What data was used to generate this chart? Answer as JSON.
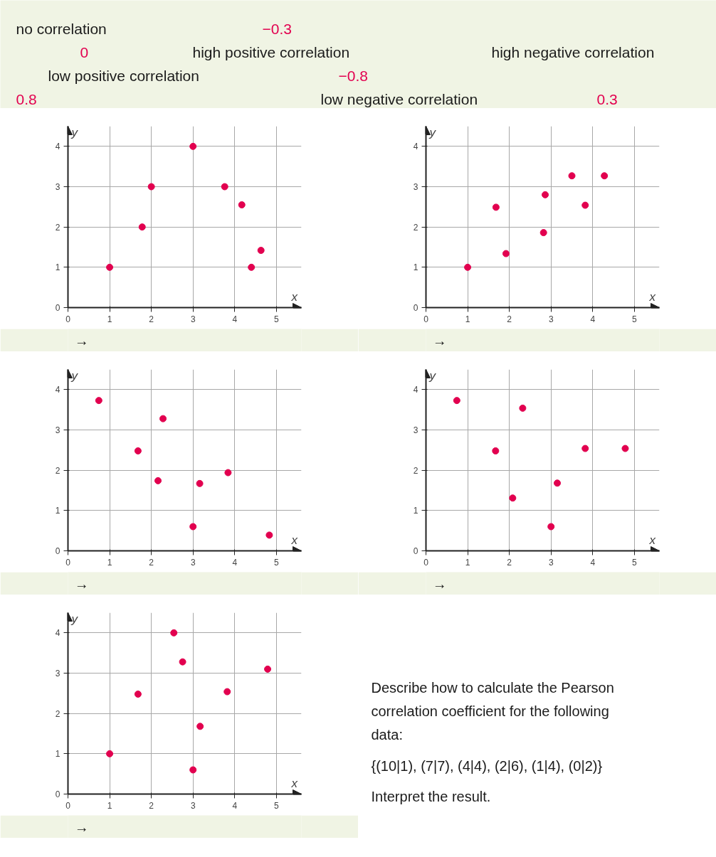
{
  "chart_data": [
    {
      "type": "other",
      "annotations": [
        "no correlation",
        "−0.3",
        "0",
        "high positive correlation",
        "high negative correlation",
        "low positive correlation",
        "−0.8",
        "0.8",
        "low negative correlation",
        "0.3"
      ],
      "colors": [
        "#1a1a1a",
        "#e2004f",
        "#e2004f",
        "#1a1a1a",
        "#1a1a1a",
        "#1a1a1a",
        "#e2004f",
        "#e2004f",
        "#1a1a1a",
        "#e2004f"
      ]
    },
    {
      "type": "scatter",
      "xlabel": "x",
      "ylabel": "y",
      "xlim": [
        0,
        5.6
      ],
      "ylim": [
        0,
        4.5
      ],
      "xticks": [
        0,
        1,
        2,
        3,
        4,
        5
      ],
      "yticks": [
        0,
        1,
        2,
        3,
        4
      ],
      "grid": true,
      "marker": "circle",
      "annotations": [
        "→"
      ],
      "series": [
        {
          "color": "#e2004f",
          "x": [
            1,
            1.78,
            2,
            3,
            3.76,
            4.17,
            4.4,
            4.63
          ],
          "values": [
            1,
            2,
            3,
            4,
            3,
            2.55,
            1,
            1.42
          ]
        }
      ]
    },
    {
      "type": "scatter",
      "xlabel": "x",
      "ylabel": "y",
      "xlim": [
        0,
        5.6
      ],
      "ylim": [
        0,
        4.5
      ],
      "xticks": [
        0,
        1,
        2,
        3,
        4,
        5
      ],
      "yticks": [
        0,
        1,
        2,
        3,
        4
      ],
      "grid": true,
      "marker": "circle",
      "annotations": [
        "→"
      ],
      "series": [
        {
          "color": "#e2004f",
          "x": [
            1,
            1.68,
            1.92,
            2.82,
            2.86,
            3.5,
            3.82,
            4.28
          ],
          "values": [
            1,
            2.49,
            1.34,
            1.86,
            2.8,
            3.27,
            2.54,
            3.27
          ]
        }
      ]
    },
    {
      "type": "scatter",
      "xlabel": "x",
      "ylabel": "y",
      "xlim": [
        0,
        5.6
      ],
      "ylim": [
        0,
        4.5
      ],
      "xticks": [
        0,
        1,
        2,
        3,
        4,
        5
      ],
      "yticks": [
        0,
        1,
        2,
        3,
        4
      ],
      "grid": true,
      "marker": "circle",
      "annotations": [
        "→"
      ],
      "series": [
        {
          "color": "#e2004f",
          "x": [
            0.74,
            1.68,
            2.16,
            2.28,
            3,
            3.16,
            3.84,
            4.83
          ],
          "values": [
            3.73,
            2.48,
            1.74,
            3.28,
            0.6,
            1.67,
            1.94,
            0.39
          ]
        }
      ]
    },
    {
      "type": "scatter",
      "xlabel": "x",
      "ylabel": "y",
      "xlim": [
        0,
        5.6
      ],
      "ylim": [
        0,
        4.5
      ],
      "xticks": [
        0,
        1,
        2,
        3,
        4,
        5
      ],
      "yticks": [
        0,
        1,
        2,
        3,
        4
      ],
      "grid": true,
      "marker": "circle",
      "annotations": [
        "→"
      ],
      "series": [
        {
          "color": "#e2004f",
          "x": [
            0.74,
            1.67,
            2.08,
            2.32,
            3,
            3.15,
            3.82,
            4.78
          ],
          "values": [
            3.73,
            2.48,
            1.31,
            3.54,
            0.6,
            1.68,
            2.54,
            2.54
          ]
        }
      ]
    },
    {
      "type": "scatter",
      "xlabel": "x",
      "ylabel": "y",
      "xlim": [
        0,
        5.6
      ],
      "ylim": [
        0,
        4.5
      ],
      "xticks": [
        0,
        1,
        2,
        3,
        4,
        5
      ],
      "yticks": [
        0,
        1,
        2,
        3,
        4
      ],
      "grid": true,
      "marker": "circle",
      "annotations": [
        "→"
      ],
      "series": [
        {
          "color": "#e2004f",
          "x": [
            1,
            1.68,
            2.54,
            2.75,
            3,
            3.17,
            3.82,
            4.79
          ],
          "values": [
            1,
            2.48,
            4,
            3.28,
            0.6,
            1.68,
            2.54,
            3.1
          ]
        }
      ]
    },
    {
      "type": "other",
      "annotations": [
        "Describe how to calculate the Pearson",
        "correlation coefficient for the following",
        "data:",
        "{(10|1), (7|7), (4|4), (2|6), (1|4), (0|2)}",
        "Interpret the result."
      ]
    }
  ]
}
